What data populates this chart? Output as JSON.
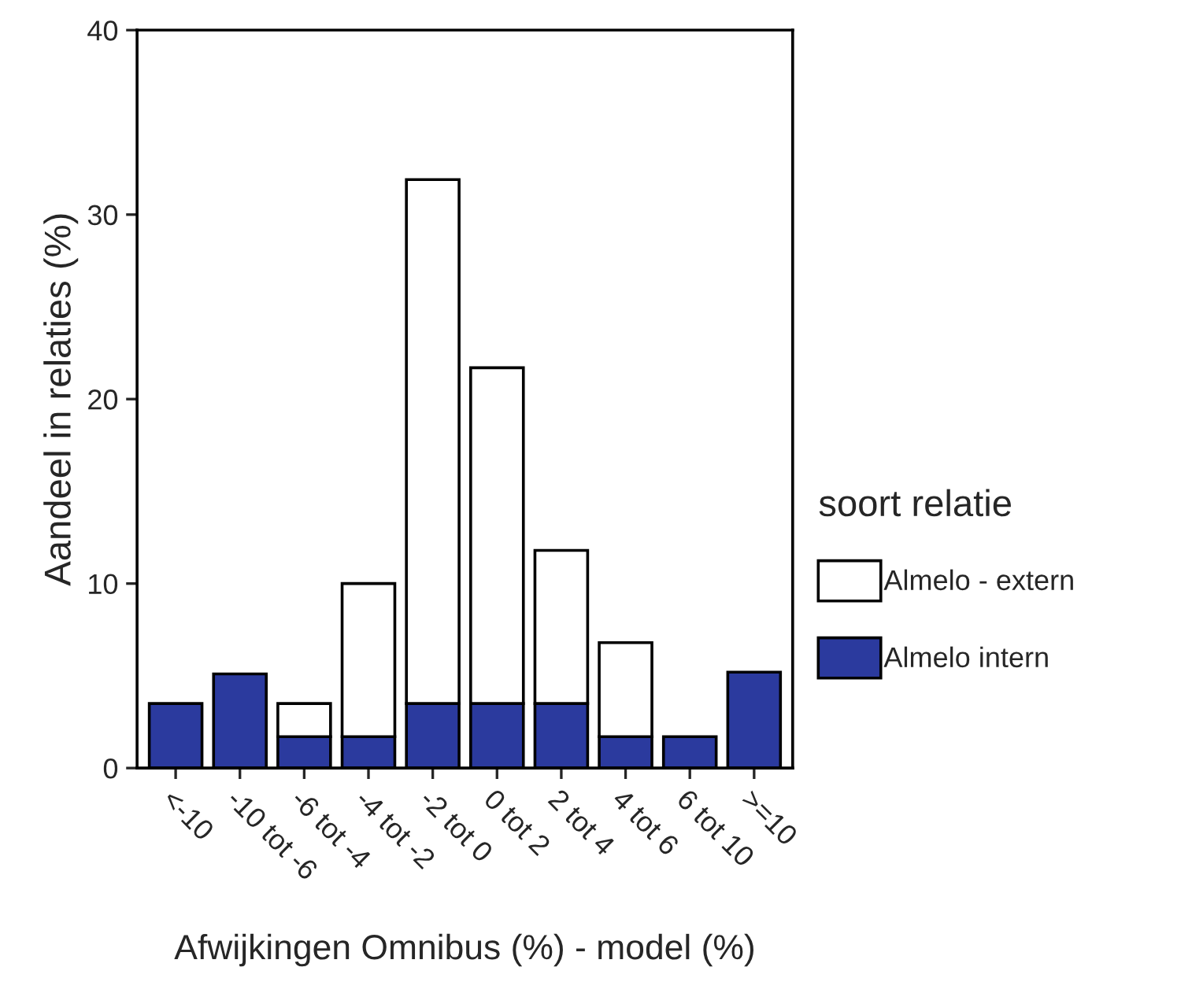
{
  "chart_data": {
    "type": "bar",
    "stacked": true,
    "xlabel": "Afwijkingen Omnibus (%) - model (%)",
    "ylabel": "Aandeel in relaties (%)",
    "legend_title": "soort relatie",
    "categories": [
      "<-10",
      "-10 tot -6",
      "-6 tot -4",
      "-4 tot -2",
      "-2 tot 0",
      "0 tot 2",
      "2 tot 4",
      "4 tot 6",
      "6 tot 10",
      ">=10"
    ],
    "series": [
      {
        "name": "Almelo intern",
        "color": "#2b3a9e",
        "values": [
          3.5,
          5.1,
          1.7,
          1.7,
          3.5,
          3.5,
          3.5,
          1.7,
          1.7,
          5.2
        ]
      },
      {
        "name": "Almelo - extern",
        "color": "#ffffff",
        "values": [
          0,
          0,
          1.8,
          8.3,
          28.4,
          18.2,
          8.3,
          5.1,
          0,
          0
        ]
      }
    ],
    "ylim": [
      0,
      40
    ],
    "yticks": [
      0,
      10,
      20,
      30,
      40
    ],
    "grid": false,
    "legend": "right"
  }
}
